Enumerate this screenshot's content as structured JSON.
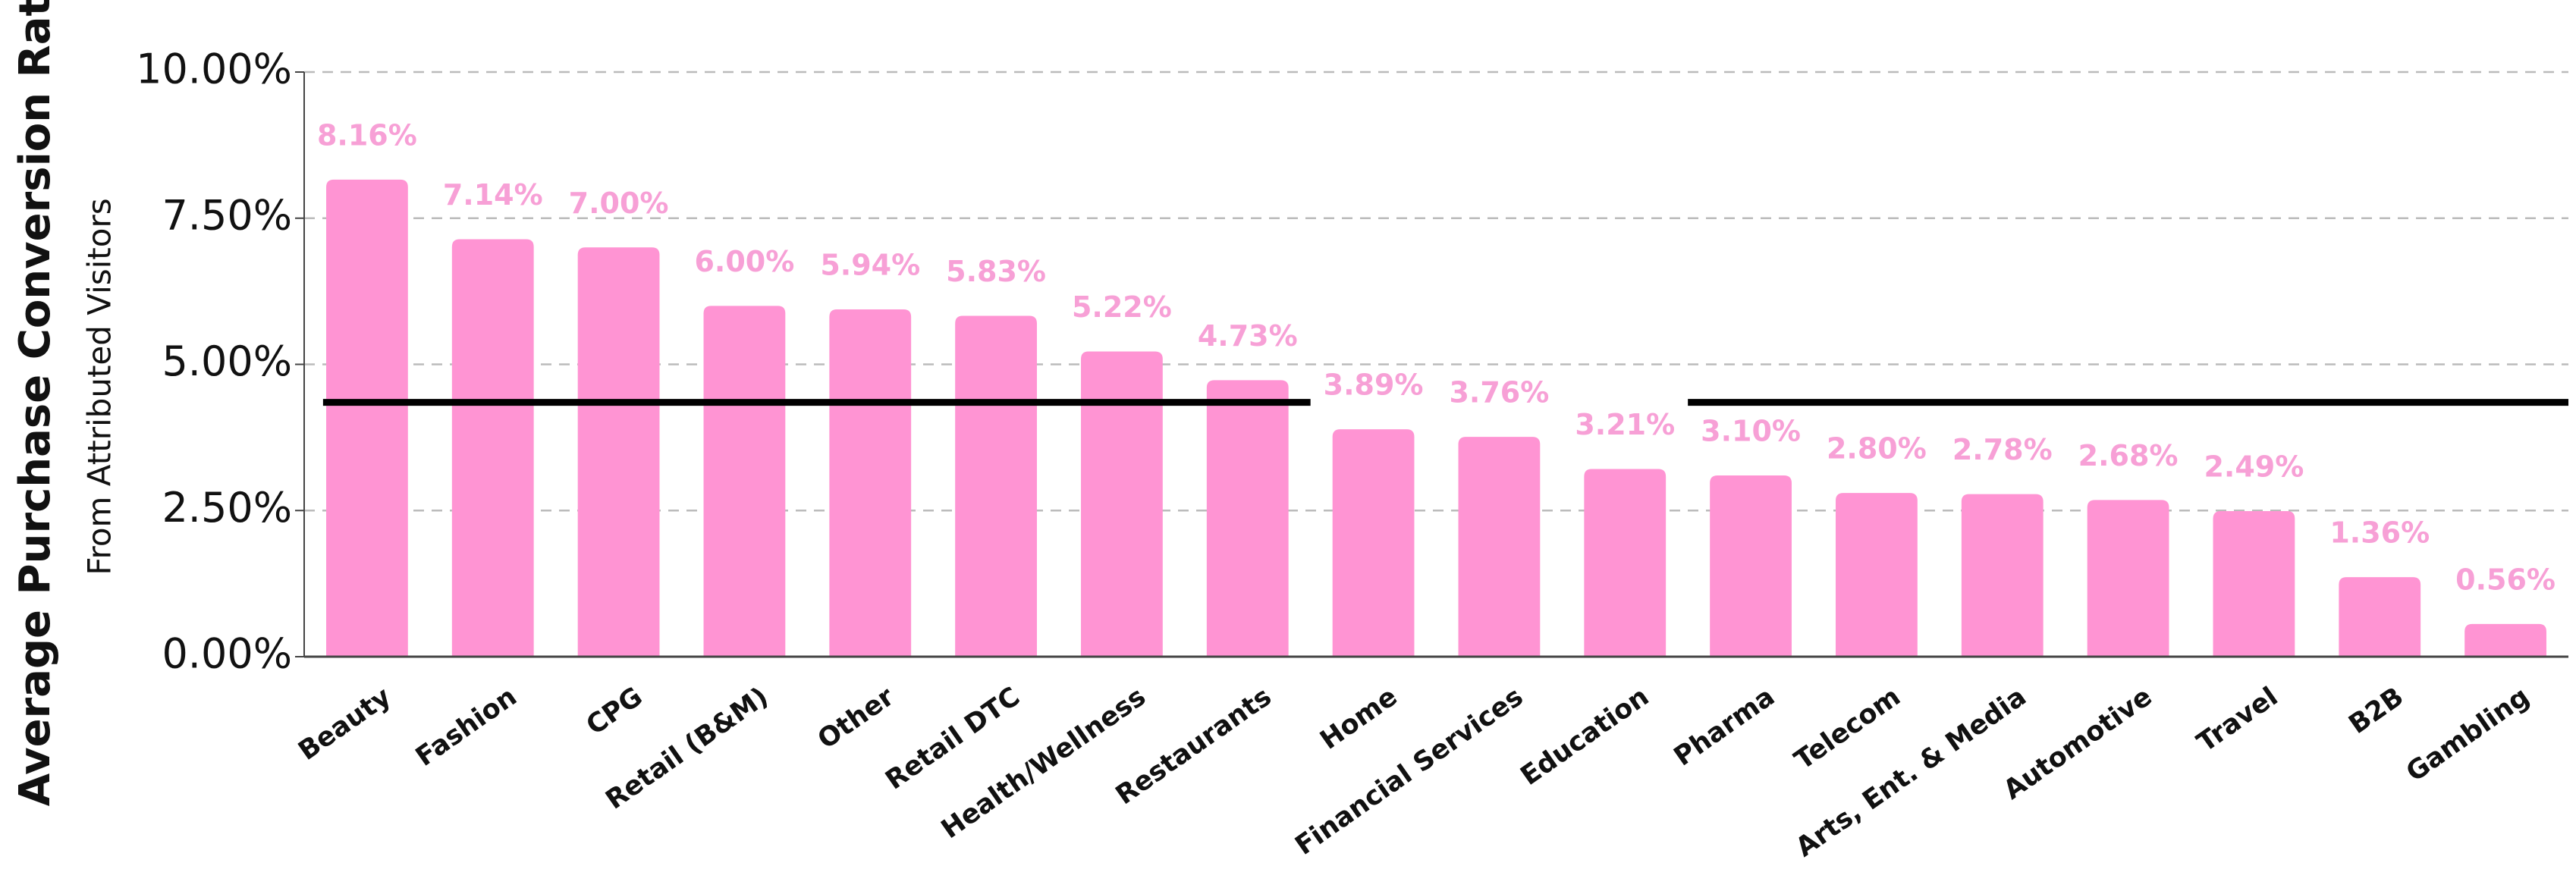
{
  "chart_data": {
    "type": "bar",
    "title": "Average Purchase Conversion Rate",
    "subtitle": "From Attributed Visitors",
    "categories": [
      "Beauty",
      "Fashion",
      "CPG",
      "Retail (B&M)",
      "Other",
      "Retail DTC",
      "Health/Wellness",
      "Restaurants",
      "Home",
      "Financial Services",
      "Education",
      "Pharma",
      "Telecom",
      "Arts, Ent. & Media",
      "Automotive",
      "Travel",
      "B2B",
      "Gambling"
    ],
    "values": [
      8.16,
      7.14,
      7.0,
      6.0,
      5.94,
      5.83,
      5.22,
      4.73,
      3.89,
      3.76,
      3.21,
      3.1,
      2.8,
      2.78,
      2.68,
      2.49,
      1.36,
      0.56
    ],
    "value_labels": [
      "8.16%",
      "7.14%",
      "7.00%",
      "6.00%",
      "5.94%",
      "5.83%",
      "5.22%",
      "4.73%",
      "3.89%",
      "3.76%",
      "3.21%",
      "3.10%",
      "2.80%",
      "2.78%",
      "2.68%",
      "2.49%",
      "1.36%",
      "0.56%"
    ],
    "color": "#ff94d3",
    "label_color": "#f7a0d6",
    "ylim": [
      0,
      10
    ],
    "yticks": [
      {
        "value": 0,
        "label": "0.00%"
      },
      {
        "value": 2.5,
        "label": "2.50%"
      },
      {
        "value": 5,
        "label": "5.00%"
      },
      {
        "value": 7.5,
        "label": "7.50%"
      },
      {
        "value": 10,
        "label": "10.00%"
      }
    ],
    "grid": true,
    "reference_line": {
      "value": 4.35,
      "color": "#000000"
    }
  }
}
